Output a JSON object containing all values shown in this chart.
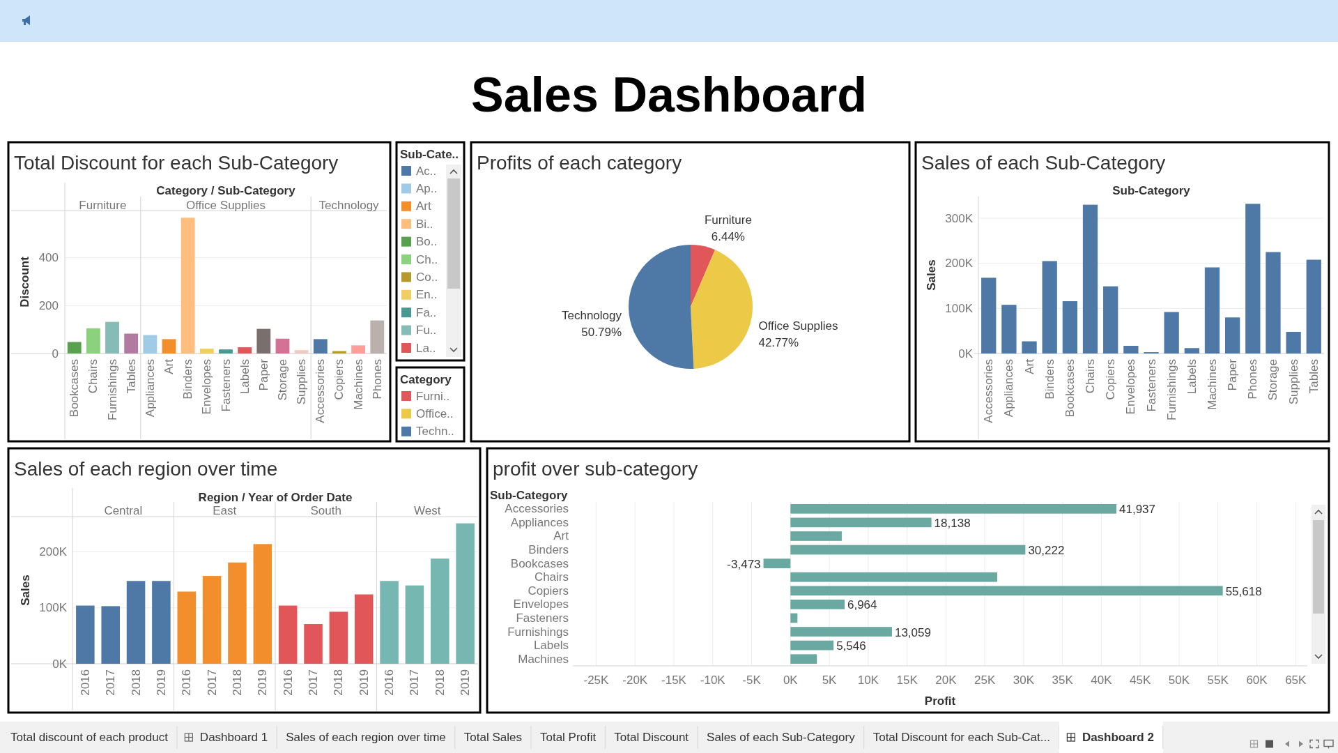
{
  "chart_data": [
    {
      "type": "other",
      "title": "Sales Dashboard"
    },
    {
      "type": "bar",
      "title": "Total Discount for each Sub-Category",
      "xlabel": "Category / Sub-Category",
      "ylabel": "Discount",
      "annotations": [
        "Furniture",
        "Office Supplies",
        "Technology"
      ],
      "categories": [
        "Bookcases",
        "Chairs",
        "Furnishings",
        "Tables",
        "Appliances",
        "Art",
        "Binders",
        "Envelopes",
        "Fasteners",
        "Labels",
        "Paper",
        "Storage",
        "Supplies",
        "Accessories",
        "Copiers",
        "Machines",
        "Phones"
      ],
      "series": [
        {
          "colors": [
            "#59a14f",
            "#8cd17d",
            "#86bcb6",
            "#b07aa1",
            null,
            null,
            null,
            null,
            null,
            null,
            null,
            null,
            null,
            null,
            null,
            null,
            null
          ],
          "values": [
            48,
            105,
            132,
            83,
            null,
            null,
            null,
            null,
            null,
            null,
            null,
            null,
            null,
            null,
            null,
            null,
            null
          ]
        },
        {
          "colors": [
            null,
            null,
            null,
            null,
            "#a0cbe8",
            "#f28e2b",
            "#ffbe7d",
            "#f1ce63",
            "#499894",
            "#e15759",
            "#79706e",
            "#d37295",
            "#efcbbf",
            null,
            null,
            null,
            null
          ],
          "values": [
            null,
            null,
            null,
            null,
            77,
            60,
            567,
            20,
            17,
            26,
            103,
            62,
            14,
            null,
            null,
            null,
            null
          ]
        },
        {
          "colors": [
            null,
            null,
            null,
            null,
            null,
            null,
            null,
            null,
            null,
            null,
            null,
            null,
            null,
            "#4e79a7",
            "#b6992d",
            "#ff9d9a",
            "#bab0ac"
          ],
          "values": [
            null,
            null,
            null,
            null,
            null,
            null,
            null,
            null,
            null,
            null,
            null,
            null,
            null,
            60,
            10,
            34,
            138
          ]
        }
      ],
      "ylim": [
        0,
        597
      ],
      "yticks": [
        0,
        200,
        400
      ],
      "grid": "y"
    },
    {
      "type": "other",
      "legend_title": "Sub-Cate..",
      "categories": [
        "Ac..",
        "Ap..",
        "Art",
        "Bi..",
        "Bo..",
        "Ch..",
        "Co..",
        "En..",
        "Fa..",
        "Fu..",
        "La.."
      ],
      "colors": [
        "#4e79a7",
        "#a0cbe8",
        "#f28e2b",
        "#ffbe7d",
        "#59a14f",
        "#8cd17d",
        "#b6992d",
        "#f1ce63",
        "#499894",
        "#86bcb6",
        "#e15759"
      ]
    },
    {
      "type": "other",
      "legend_title": "Category",
      "categories": [
        "Furni..",
        "Office..",
        "Techn.."
      ],
      "colors": [
        "#e15759",
        "#edc948",
        "#4e79a7"
      ]
    },
    {
      "type": "pie",
      "title": "Profits of each category",
      "categories": [
        "Furniture",
        "Office Supplies",
        "Technology"
      ],
      "values": [
        6.44,
        42.77,
        50.79
      ],
      "value_labels": [
        "6.44%",
        "42.77%",
        "50.79%"
      ],
      "colors": [
        "#e15759",
        "#edc948",
        "#4e79a7"
      ]
    },
    {
      "type": "bar",
      "title": "Sales of each Sub-Category",
      "xlabel": "Sub-Category",
      "ylabel": "Sales",
      "categories": [
        "Accessories",
        "Appliances",
        "Art",
        "Binders",
        "Bookcases",
        "Chairs",
        "Copiers",
        "Envelopes",
        "Fasteners",
        "Furnishings",
        "Labels",
        "Machines",
        "Paper",
        "Phones",
        "Storage",
        "Supplies",
        "Tables"
      ],
      "values": [
        168000,
        108000,
        27000,
        205000,
        116000,
        330000,
        149000,
        17000,
        3000,
        92000,
        12000,
        191000,
        80000,
        332000,
        225000,
        48000,
        208000
      ],
      "color": "#4e79a7",
      "ylim": [
        0,
        348000
      ],
      "yticks": [
        {
          "value": 0,
          "label": "0K"
        },
        {
          "value": 100000,
          "label": "100K"
        },
        {
          "value": 200000,
          "label": "200K"
        },
        {
          "value": 300000,
          "label": "300K"
        }
      ],
      "grid": "y"
    },
    {
      "type": "bar",
      "title": "Sales of each region over time",
      "xlabel": "Region / Year of Order Date",
      "ylabel": "Sales",
      "annotations": [
        "Central",
        "East",
        "South",
        "West"
      ],
      "categories": [
        "2016",
        "2017",
        "2018",
        "2019",
        "2016",
        "2017",
        "2018",
        "2019",
        "2016",
        "2017",
        "2018",
        "2019",
        "2016",
        "2017",
        "2018",
        "2019"
      ],
      "series": [
        {
          "color": "#4e79a7",
          "values": [
            104000,
            103000,
            148000,
            148000,
            null,
            null,
            null,
            null,
            null,
            null,
            null,
            null,
            null,
            null,
            null,
            null
          ]
        },
        {
          "color": "#f28e2b",
          "values": [
            null,
            null,
            null,
            null,
            129000,
            157000,
            181000,
            214000,
            null,
            null,
            null,
            null,
            null,
            null,
            null,
            null
          ]
        },
        {
          "color": "#e15759",
          "values": [
            null,
            null,
            null,
            null,
            null,
            null,
            null,
            null,
            104000,
            71000,
            93000,
            124000,
            null,
            null,
            null,
            null
          ]
        },
        {
          "color": "#76b7b2",
          "values": [
            null,
            null,
            null,
            null,
            null,
            null,
            null,
            null,
            null,
            null,
            null,
            null,
            148000,
            140000,
            188000,
            251000
          ]
        }
      ],
      "ylim": [
        0,
        263000
      ],
      "yticks": [
        {
          "value": 0,
          "label": "0K"
        },
        {
          "value": 100000,
          "label": "100K"
        },
        {
          "value": 200000,
          "label": "200K"
        }
      ],
      "grid": "y"
    },
    {
      "type": "bar",
      "orientation": "horizontal",
      "title": "profit over sub-category",
      "ylabel": "Sub-Category",
      "xlabel": "Profit",
      "categories": [
        "Accessories",
        "Appliances",
        "Art",
        "Binders",
        "Bookcases",
        "Chairs",
        "Copiers",
        "Envelopes",
        "Fasteners",
        "Furnishings",
        "Labels",
        "Machines"
      ],
      "values": [
        41937,
        18138,
        6600,
        30222,
        -3473,
        26600,
        55618,
        6964,
        900,
        13059,
        5546,
        3400
      ],
      "value_labels": [
        "41,937",
        "18,138",
        null,
        "30,222",
        "-3,473",
        null,
        "55,618",
        "6,964",
        null,
        "13,059",
        "5,546",
        null
      ],
      "color": "#6aa9a1",
      "xlim": [
        -28000,
        66500
      ],
      "xticks": [
        {
          "value": -25000,
          "label": "-25K"
        },
        {
          "value": -20000,
          "label": "-20K"
        },
        {
          "value": -15000,
          "label": "-15K"
        },
        {
          "value": -10000,
          "label": "-10K"
        },
        {
          "value": -5000,
          "label": "-5K"
        },
        {
          "value": 0,
          "label": "0K"
        },
        {
          "value": 5000,
          "label": "5K"
        },
        {
          "value": 10000,
          "label": "10K"
        },
        {
          "value": 15000,
          "label": "15K"
        },
        {
          "value": 20000,
          "label": "20K"
        },
        {
          "value": 25000,
          "label": "25K"
        },
        {
          "value": 30000,
          "label": "30K"
        },
        {
          "value": 35000,
          "label": "35K"
        },
        {
          "value": 40000,
          "label": "40K"
        },
        {
          "value": 45000,
          "label": "45K"
        },
        {
          "value": 50000,
          "label": "50K"
        },
        {
          "value": 55000,
          "label": "55K"
        },
        {
          "value": 60000,
          "label": "60K"
        },
        {
          "value": 65000,
          "label": "65K"
        }
      ],
      "grid": "x"
    },
    {
      "type": "other",
      "categories": [
        "Total discount of each product",
        "Dashboard 1",
        "Sales of each region over time",
        "Total Sales",
        "Total Profit",
        "Total Discount",
        "Sales of each Sub-Category",
        "Total Discount for each Sub-Cat...",
        "Dashboard 2"
      ]
    }
  ]
}
